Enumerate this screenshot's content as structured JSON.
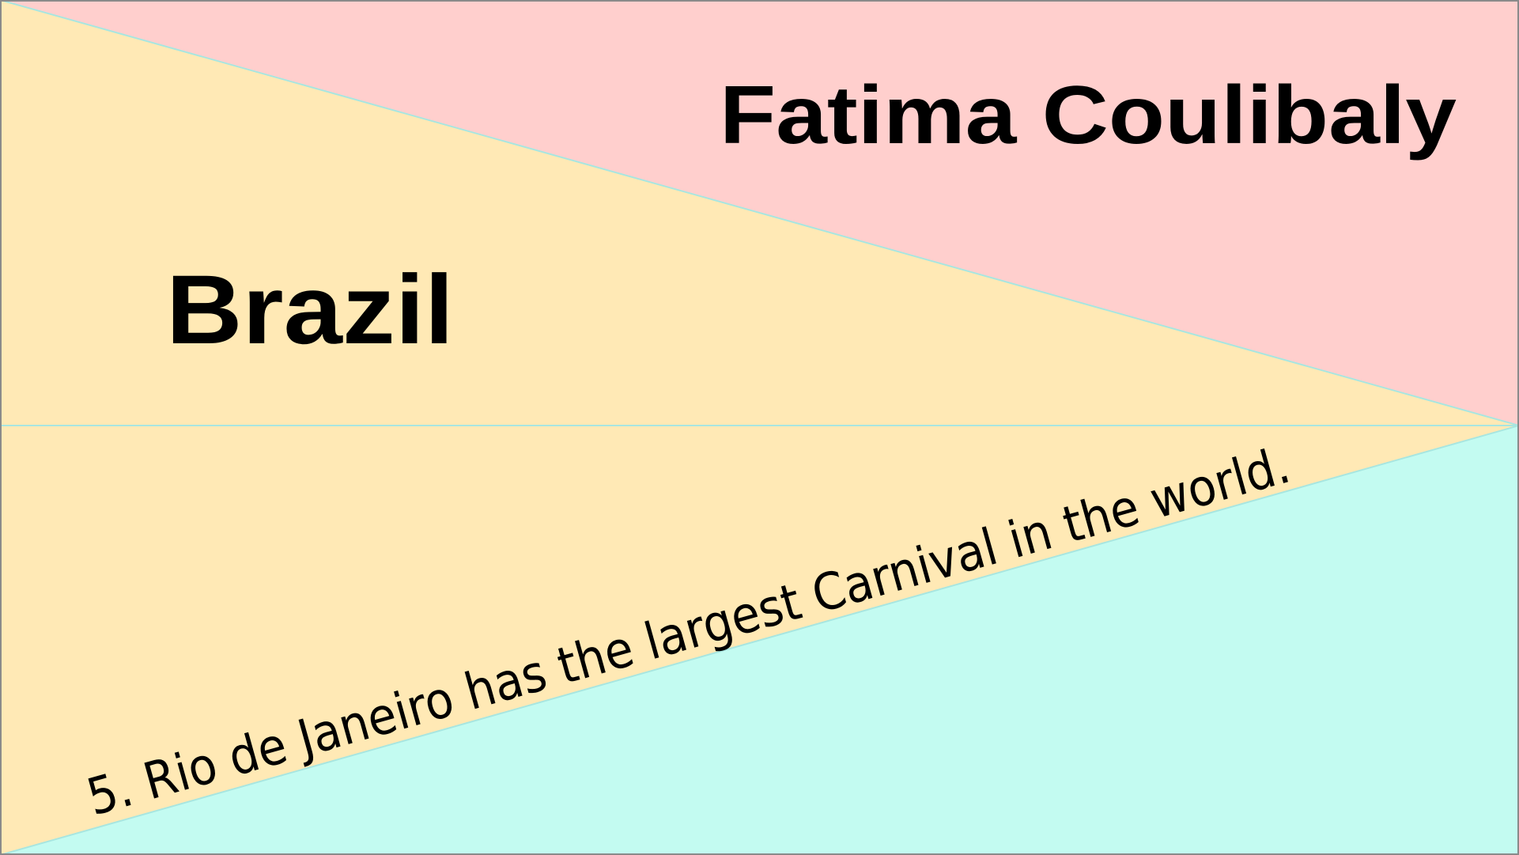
{
  "card": {
    "person_name": "Fatima Coulibaly",
    "country": "Brazil",
    "fact": "5. Rio de Janeiro has the largest Carnival in the world."
  },
  "colors": {
    "top_triangle": "#ffcfcd",
    "middle_region": "#ffe9b5",
    "bottom_triangle": "#c3fbf1",
    "divider_line": "#a8e6e0",
    "frame_border": "#8a8a8a",
    "text": "#000000"
  }
}
